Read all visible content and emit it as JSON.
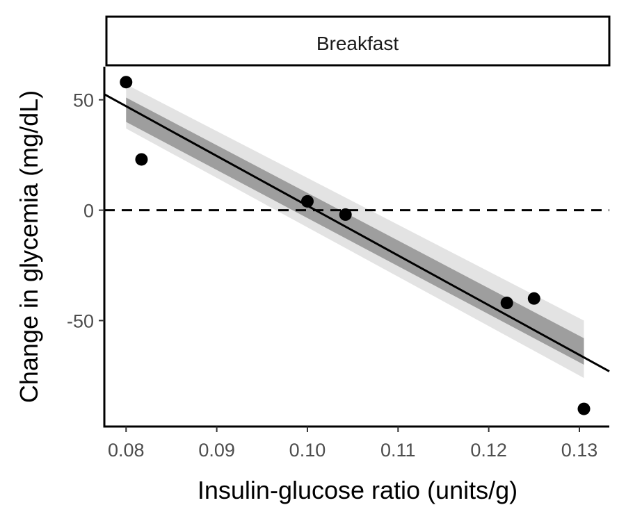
{
  "chart_data": {
    "type": "scatter",
    "panel_title": "Breakfast",
    "xlabel": "Insulin-glucose ratio (units/g)",
    "ylabel": "Change in glycemia (mg/dL)",
    "xlim": [
      0.0776,
      0.1333
    ],
    "ylim": [
      -98,
      65
    ],
    "x_ticks": [
      0.08,
      0.09,
      0.1,
      0.11,
      0.12,
      0.13
    ],
    "x_tick_labels": [
      "0.08",
      "0.09",
      "0.10",
      "0.11",
      "0.12",
      "0.13"
    ],
    "y_ticks": [
      50,
      0,
      -50
    ],
    "y_tick_labels": [
      "50",
      "0",
      "-50"
    ],
    "points": [
      {
        "x": 0.08,
        "y": 58
      },
      {
        "x": 0.0817,
        "y": 23
      },
      {
        "x": 0.1,
        "y": 4
      },
      {
        "x": 0.1042,
        "y": -2
      },
      {
        "x": 0.122,
        "y": -42
      },
      {
        "x": 0.125,
        "y": -40
      },
      {
        "x": 0.1305,
        "y": -90
      }
    ],
    "fit_line": {
      "x": [
        0.0776,
        0.1333
      ],
      "y": [
        52.5,
        -73
      ]
    },
    "ribbon_inner": {
      "x": [
        0.08,
        0.1305
      ],
      "upper": [
        51,
        -58
      ],
      "lower": [
        40,
        -70
      ]
    },
    "ribbon_outer": {
      "x": [
        0.08,
        0.1305
      ],
      "upper": [
        57,
        -50
      ],
      "lower": [
        37,
        -76
      ]
    },
    "reference_line_y": 0,
    "colors": {
      "points": "#000000",
      "fit_line": "#000000",
      "ribbon_inner": "#9e9e9e",
      "ribbon_outer": "#e3e3e3",
      "axis": "#000000",
      "reference_line": "#000000"
    }
  }
}
